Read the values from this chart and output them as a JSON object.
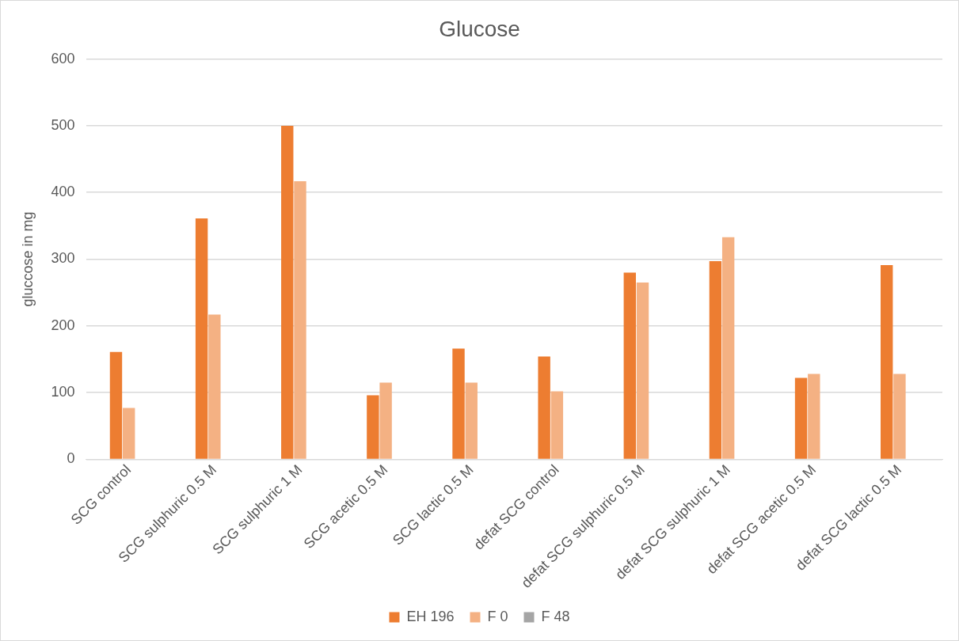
{
  "chart_data": {
    "type": "bar",
    "title": "Glucose",
    "ylabel": "gluccose in mg",
    "categories": [
      "SCG control",
      "SCG sulphuric 0.5 M",
      "SCG sulphuric 1 M",
      "SCG acetic 0.5 M",
      "SCG lactic 0.5 M",
      "defat SCG control",
      "defat SCG sulphuric 0.5 M",
      "defat SCG sulphuric 1 M",
      "defat SCG acetic 0.5 M",
      "defat SCG lactic 0.5 M"
    ],
    "series": [
      {
        "name": "EH 196",
        "color": "#ed7d31",
        "values": [
          161,
          361,
          500,
          96,
          166,
          154,
          280,
          297,
          122,
          291
        ]
      },
      {
        "name": "F 0",
        "color": "#f4b183",
        "values": [
          77,
          217,
          417,
          115,
          115,
          102,
          265,
          333,
          128,
          128
        ]
      },
      {
        "name": "F 48",
        "color": "#a5a5a5",
        "values": [
          null,
          null,
          null,
          null,
          null,
          null,
          null,
          null,
          null,
          null
        ]
      }
    ],
    "ylim": [
      0,
      600
    ],
    "yticks": [
      0,
      100,
      200,
      300,
      400,
      500,
      600
    ],
    "grid": "y",
    "legend": "bottom"
  }
}
